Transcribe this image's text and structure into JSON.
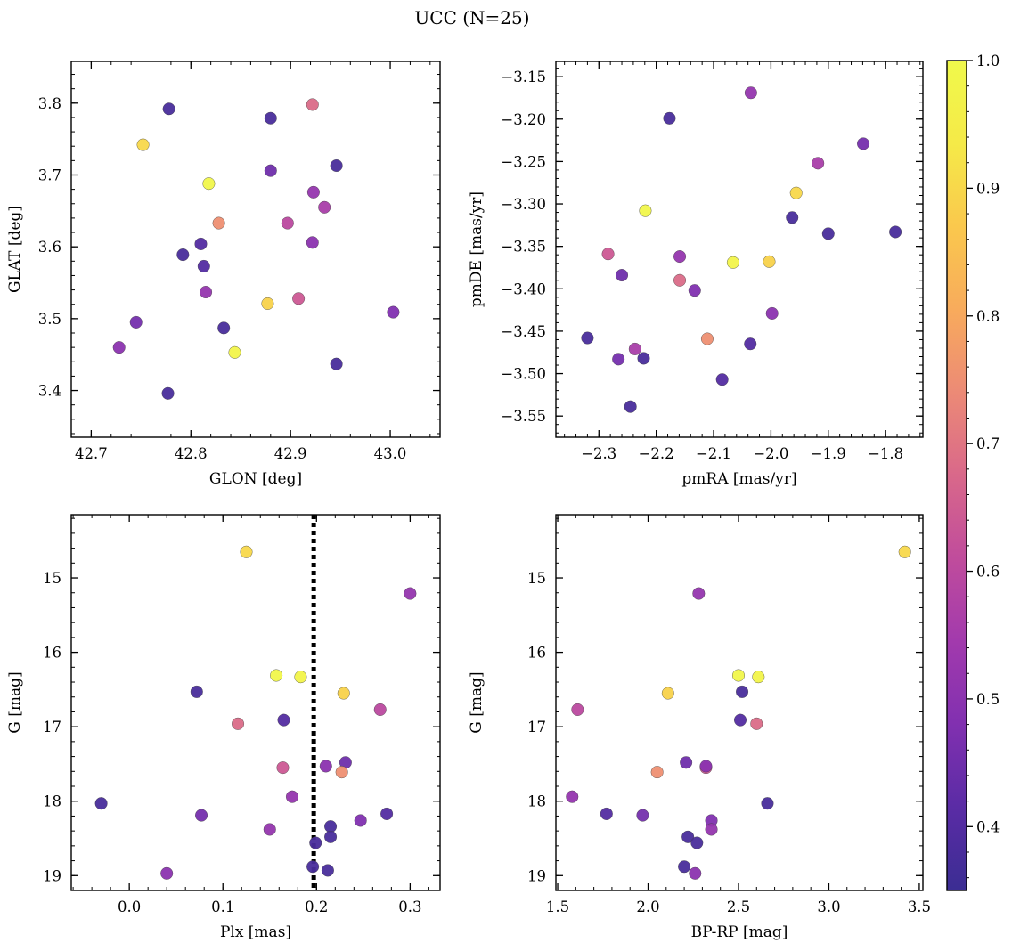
{
  "figure": {
    "title": "UCC (N=25)"
  },
  "colorbar": {
    "range": [
      0.35,
      1.0
    ],
    "ticks": [
      {
        "value": 0.4,
        "label": "0.4"
      },
      {
        "value": 0.5,
        "label": "0.5"
      },
      {
        "value": 0.6,
        "label": "0.6"
      },
      {
        "value": 0.7,
        "label": "0.7"
      },
      {
        "value": 0.8,
        "label": "0.8"
      },
      {
        "value": 0.9,
        "label": "0.9"
      },
      {
        "value": 1.0,
        "label": "1.0"
      }
    ],
    "colormap": "plasma",
    "stops": [
      "#3b2d93",
      "#5a2ca5",
      "#8130b0",
      "#a23aad",
      "#c04c9c",
      "#d9688a",
      "#ec8a76",
      "#f8ab5c",
      "#fac84d",
      "#f5ea48",
      "#f0f94b"
    ]
  },
  "chart_data": [
    {
      "type": "scatter",
      "title": "",
      "xlabel": "GLON [deg]",
      "ylabel": "GLAT [deg]",
      "xlim": [
        42.68,
        43.05
      ],
      "ylim": [
        3.335,
        3.858
      ],
      "y_inverted": false,
      "xticks": [
        {
          "v": 42.7,
          "l": "42.7"
        },
        {
          "v": 42.8,
          "l": "42.8"
        },
        {
          "v": 42.9,
          "l": "42.9"
        },
        {
          "v": 43.0,
          "l": "43.0"
        }
      ],
      "yticks": [
        {
          "v": 3.4,
          "l": "3.4"
        },
        {
          "v": 3.5,
          "l": "3.5"
        },
        {
          "v": 3.6,
          "l": "3.6"
        },
        {
          "v": 3.7,
          "l": "3.7"
        },
        {
          "v": 3.8,
          "l": "3.8"
        }
      ],
      "x_minor_step": 0.02,
      "y_minor_step": 0.02,
      "points": [
        {
          "x": 42.778,
          "y": 3.792,
          "c": 0.38
        },
        {
          "x": 42.752,
          "y": 3.742,
          "c": 0.9
        },
        {
          "x": 42.88,
          "y": 3.779,
          "c": 0.38
        },
        {
          "x": 42.922,
          "y": 3.798,
          "c": 0.68
        },
        {
          "x": 42.946,
          "y": 3.713,
          "c": 0.38
        },
        {
          "x": 42.88,
          "y": 3.706,
          "c": 0.45
        },
        {
          "x": 42.818,
          "y": 3.688,
          "c": 0.99
        },
        {
          "x": 42.923,
          "y": 3.676,
          "c": 0.52
        },
        {
          "x": 42.934,
          "y": 3.655,
          "c": 0.56
        },
        {
          "x": 42.828,
          "y": 3.633,
          "c": 0.75
        },
        {
          "x": 42.897,
          "y": 3.633,
          "c": 0.6
        },
        {
          "x": 42.81,
          "y": 3.604,
          "c": 0.4
        },
        {
          "x": 42.922,
          "y": 3.606,
          "c": 0.5
        },
        {
          "x": 42.792,
          "y": 3.589,
          "c": 0.38
        },
        {
          "x": 42.813,
          "y": 3.573,
          "c": 0.4
        },
        {
          "x": 42.815,
          "y": 3.537,
          "c": 0.52
        },
        {
          "x": 42.908,
          "y": 3.528,
          "c": 0.64
        },
        {
          "x": 42.877,
          "y": 3.521,
          "c": 0.89
        },
        {
          "x": 43.003,
          "y": 3.509,
          "c": 0.48
        },
        {
          "x": 42.745,
          "y": 3.495,
          "c": 0.46
        },
        {
          "x": 42.833,
          "y": 3.487,
          "c": 0.38
        },
        {
          "x": 42.728,
          "y": 3.46,
          "c": 0.5
        },
        {
          "x": 42.844,
          "y": 3.453,
          "c": 0.98
        },
        {
          "x": 42.946,
          "y": 3.437,
          "c": 0.38
        },
        {
          "x": 42.777,
          "y": 3.396,
          "c": 0.38
        }
      ]
    },
    {
      "type": "scatter",
      "title": "",
      "xlabel": "pmRA [mas/yr]",
      "ylabel": "pmDE [mas/yr]",
      "xlim": [
        -2.375,
        -1.735
      ],
      "ylim": [
        -3.575,
        -3.132
      ],
      "y_inverted": false,
      "xticks": [
        {
          "v": -2.3,
          "l": "−2.3"
        },
        {
          "v": -2.2,
          "l": "−2.2"
        },
        {
          "v": -2.1,
          "l": "−2.1"
        },
        {
          "v": -2.0,
          "l": "−2.0"
        },
        {
          "v": -1.9,
          "l": "−1.9"
        },
        {
          "v": -1.8,
          "l": "−1.8"
        }
      ],
      "yticks": [
        {
          "v": -3.55,
          "l": "−3.55"
        },
        {
          "v": -3.5,
          "l": "−3.50"
        },
        {
          "v": -3.45,
          "l": "−3.45"
        },
        {
          "v": -3.4,
          "l": "−3.40"
        },
        {
          "v": -3.35,
          "l": "−3.35"
        },
        {
          "v": -3.3,
          "l": "−3.30"
        },
        {
          "v": -3.25,
          "l": "−3.25"
        },
        {
          "v": -3.2,
          "l": "−3.20"
        },
        {
          "v": -3.15,
          "l": "−3.15"
        }
      ],
      "x_minor_step": 0.02,
      "y_minor_step": 0.01,
      "points": [
        {
          "x": -2.035,
          "y": -3.169,
          "c": 0.52
        },
        {
          "x": -2.177,
          "y": -3.199,
          "c": 0.38
        },
        {
          "x": -1.839,
          "y": -3.229,
          "c": 0.46
        },
        {
          "x": -1.918,
          "y": -3.252,
          "c": 0.56
        },
        {
          "x": -1.956,
          "y": -3.287,
          "c": 0.9
        },
        {
          "x": -2.219,
          "y": -3.308,
          "c": 0.99
        },
        {
          "x": -1.963,
          "y": -3.316,
          "c": 0.38
        },
        {
          "x": -1.783,
          "y": -3.333,
          "c": 0.38
        },
        {
          "x": -1.9,
          "y": -3.335,
          "c": 0.38
        },
        {
          "x": -2.284,
          "y": -3.359,
          "c": 0.64
        },
        {
          "x": -2.159,
          "y": -3.362,
          "c": 0.52
        },
        {
          "x": -2.066,
          "y": -3.369,
          "c": 0.98
        },
        {
          "x": -2.003,
          "y": -3.368,
          "c": 0.89
        },
        {
          "x": -2.26,
          "y": -3.384,
          "c": 0.45
        },
        {
          "x": -2.159,
          "y": -3.39,
          "c": 0.68
        },
        {
          "x": -2.133,
          "y": -3.402,
          "c": 0.48
        },
        {
          "x": -1.998,
          "y": -3.429,
          "c": 0.5
        },
        {
          "x": -2.32,
          "y": -3.458,
          "c": 0.38
        },
        {
          "x": -2.111,
          "y": -3.459,
          "c": 0.75
        },
        {
          "x": -2.036,
          "y": -3.465,
          "c": 0.4
        },
        {
          "x": -2.237,
          "y": -3.471,
          "c": 0.56
        },
        {
          "x": -2.266,
          "y": -3.483,
          "c": 0.46
        },
        {
          "x": -2.222,
          "y": -3.482,
          "c": 0.38
        },
        {
          "x": -2.085,
          "y": -3.507,
          "c": 0.4
        },
        {
          "x": -2.245,
          "y": -3.539,
          "c": 0.38
        }
      ]
    },
    {
      "type": "scatter",
      "title": "",
      "xlabel": "Plx [mas]",
      "ylabel": "G [mag]",
      "xlim": [
        -0.062,
        0.332
      ],
      "ylim": [
        14.15,
        19.2
      ],
      "y_inverted": true,
      "xticks": [
        {
          "v": 0.0,
          "l": "0.0"
        },
        {
          "v": 0.1,
          "l": "0.1"
        },
        {
          "v": 0.2,
          "l": "0.2"
        },
        {
          "v": 0.3,
          "l": "0.3"
        }
      ],
      "yticks": [
        {
          "v": 15,
          "l": "15"
        },
        {
          "v": 16,
          "l": "16"
        },
        {
          "v": 17,
          "l": "17"
        },
        {
          "v": 18,
          "l": "18"
        },
        {
          "v": 19,
          "l": "19"
        }
      ],
      "x_minor_step": 0.02,
      "y_minor_step": 0.2,
      "vline": 0.197,
      "points": [
        {
          "x": 0.125,
          "y": 14.65,
          "c": 0.9
        },
        {
          "x": 0.3,
          "y": 15.21,
          "c": 0.52
        },
        {
          "x": 0.157,
          "y": 16.31,
          "c": 0.99
        },
        {
          "x": 0.183,
          "y": 16.33,
          "c": 0.98
        },
        {
          "x": 0.072,
          "y": 16.53,
          "c": 0.38
        },
        {
          "x": 0.229,
          "y": 16.55,
          "c": 0.89
        },
        {
          "x": 0.268,
          "y": 16.77,
          "c": 0.6
        },
        {
          "x": 0.165,
          "y": 16.91,
          "c": 0.4
        },
        {
          "x": 0.116,
          "y": 16.96,
          "c": 0.68
        },
        {
          "x": 0.164,
          "y": 17.55,
          "c": 0.64
        },
        {
          "x": 0.21,
          "y": 17.53,
          "c": 0.5
        },
        {
          "x": 0.231,
          "y": 17.48,
          "c": 0.45
        },
        {
          "x": 0.227,
          "y": 17.61,
          "c": 0.75
        },
        {
          "x": 0.174,
          "y": 17.94,
          "c": 0.52
        },
        {
          "x": -0.03,
          "y": 18.03,
          "c": 0.38
        },
        {
          "x": 0.077,
          "y": 18.19,
          "c": 0.46
        },
        {
          "x": 0.275,
          "y": 18.17,
          "c": 0.4
        },
        {
          "x": 0.247,
          "y": 18.26,
          "c": 0.48
        },
        {
          "x": 0.15,
          "y": 18.38,
          "c": 0.52
        },
        {
          "x": 0.215,
          "y": 18.34,
          "c": 0.38
        },
        {
          "x": 0.215,
          "y": 18.48,
          "c": 0.38
        },
        {
          "x": 0.199,
          "y": 18.56,
          "c": 0.38
        },
        {
          "x": 0.196,
          "y": 18.88,
          "c": 0.38
        },
        {
          "x": 0.212,
          "y": 18.93,
          "c": 0.38
        },
        {
          "x": 0.04,
          "y": 18.97,
          "c": 0.5
        }
      ]
    },
    {
      "type": "scatter",
      "title": "",
      "xlabel": "BP-RP [mag]",
      "ylabel": "G [mag]",
      "xlim": [
        1.49,
        3.52
      ],
      "ylim": [
        14.15,
        19.2
      ],
      "y_inverted": true,
      "xticks": [
        {
          "v": 1.5,
          "l": "1.5"
        },
        {
          "v": 2.0,
          "l": "2.0"
        },
        {
          "v": 2.5,
          "l": "2.5"
        },
        {
          "v": 3.0,
          "l": "3.0"
        },
        {
          "v": 3.5,
          "l": "3.5"
        }
      ],
      "yticks": [
        {
          "v": 15,
          "l": "15"
        },
        {
          "v": 16,
          "l": "16"
        },
        {
          "v": 17,
          "l": "17"
        },
        {
          "v": 18,
          "l": "18"
        },
        {
          "v": 19,
          "l": "19"
        }
      ],
      "x_minor_step": 0.1,
      "y_minor_step": 0.2,
      "points": [
        {
          "x": 3.42,
          "y": 14.65,
          "c": 0.9
        },
        {
          "x": 2.28,
          "y": 15.21,
          "c": 0.52
        },
        {
          "x": 2.5,
          "y": 16.31,
          "c": 0.99
        },
        {
          "x": 2.61,
          "y": 16.33,
          "c": 0.98
        },
        {
          "x": 2.52,
          "y": 16.53,
          "c": 0.38
        },
        {
          "x": 2.11,
          "y": 16.55,
          "c": 0.89
        },
        {
          "x": 1.61,
          "y": 16.77,
          "c": 0.6
        },
        {
          "x": 2.51,
          "y": 16.91,
          "c": 0.4
        },
        {
          "x": 2.6,
          "y": 16.96,
          "c": 0.68
        },
        {
          "x": 2.32,
          "y": 17.55,
          "c": 0.64
        },
        {
          "x": 2.32,
          "y": 17.53,
          "c": 0.5
        },
        {
          "x": 2.21,
          "y": 17.48,
          "c": 0.45
        },
        {
          "x": 2.05,
          "y": 17.61,
          "c": 0.75
        },
        {
          "x": 1.58,
          "y": 17.94,
          "c": 0.52
        },
        {
          "x": 2.66,
          "y": 18.03,
          "c": 0.38
        },
        {
          "x": 1.97,
          "y": 18.19,
          "c": 0.46
        },
        {
          "x": 1.77,
          "y": 18.17,
          "c": 0.4
        },
        {
          "x": 2.35,
          "y": 18.26,
          "c": 0.48
        },
        {
          "x": 2.35,
          "y": 18.38,
          "c": 0.52
        },
        {
          "x": 2.22,
          "y": 18.48,
          "c": 0.38
        },
        {
          "x": 2.27,
          "y": 18.56,
          "c": 0.38
        },
        {
          "x": 2.2,
          "y": 18.88,
          "c": 0.38
        },
        {
          "x": 2.26,
          "y": 18.97,
          "c": 0.5
        }
      ]
    }
  ]
}
